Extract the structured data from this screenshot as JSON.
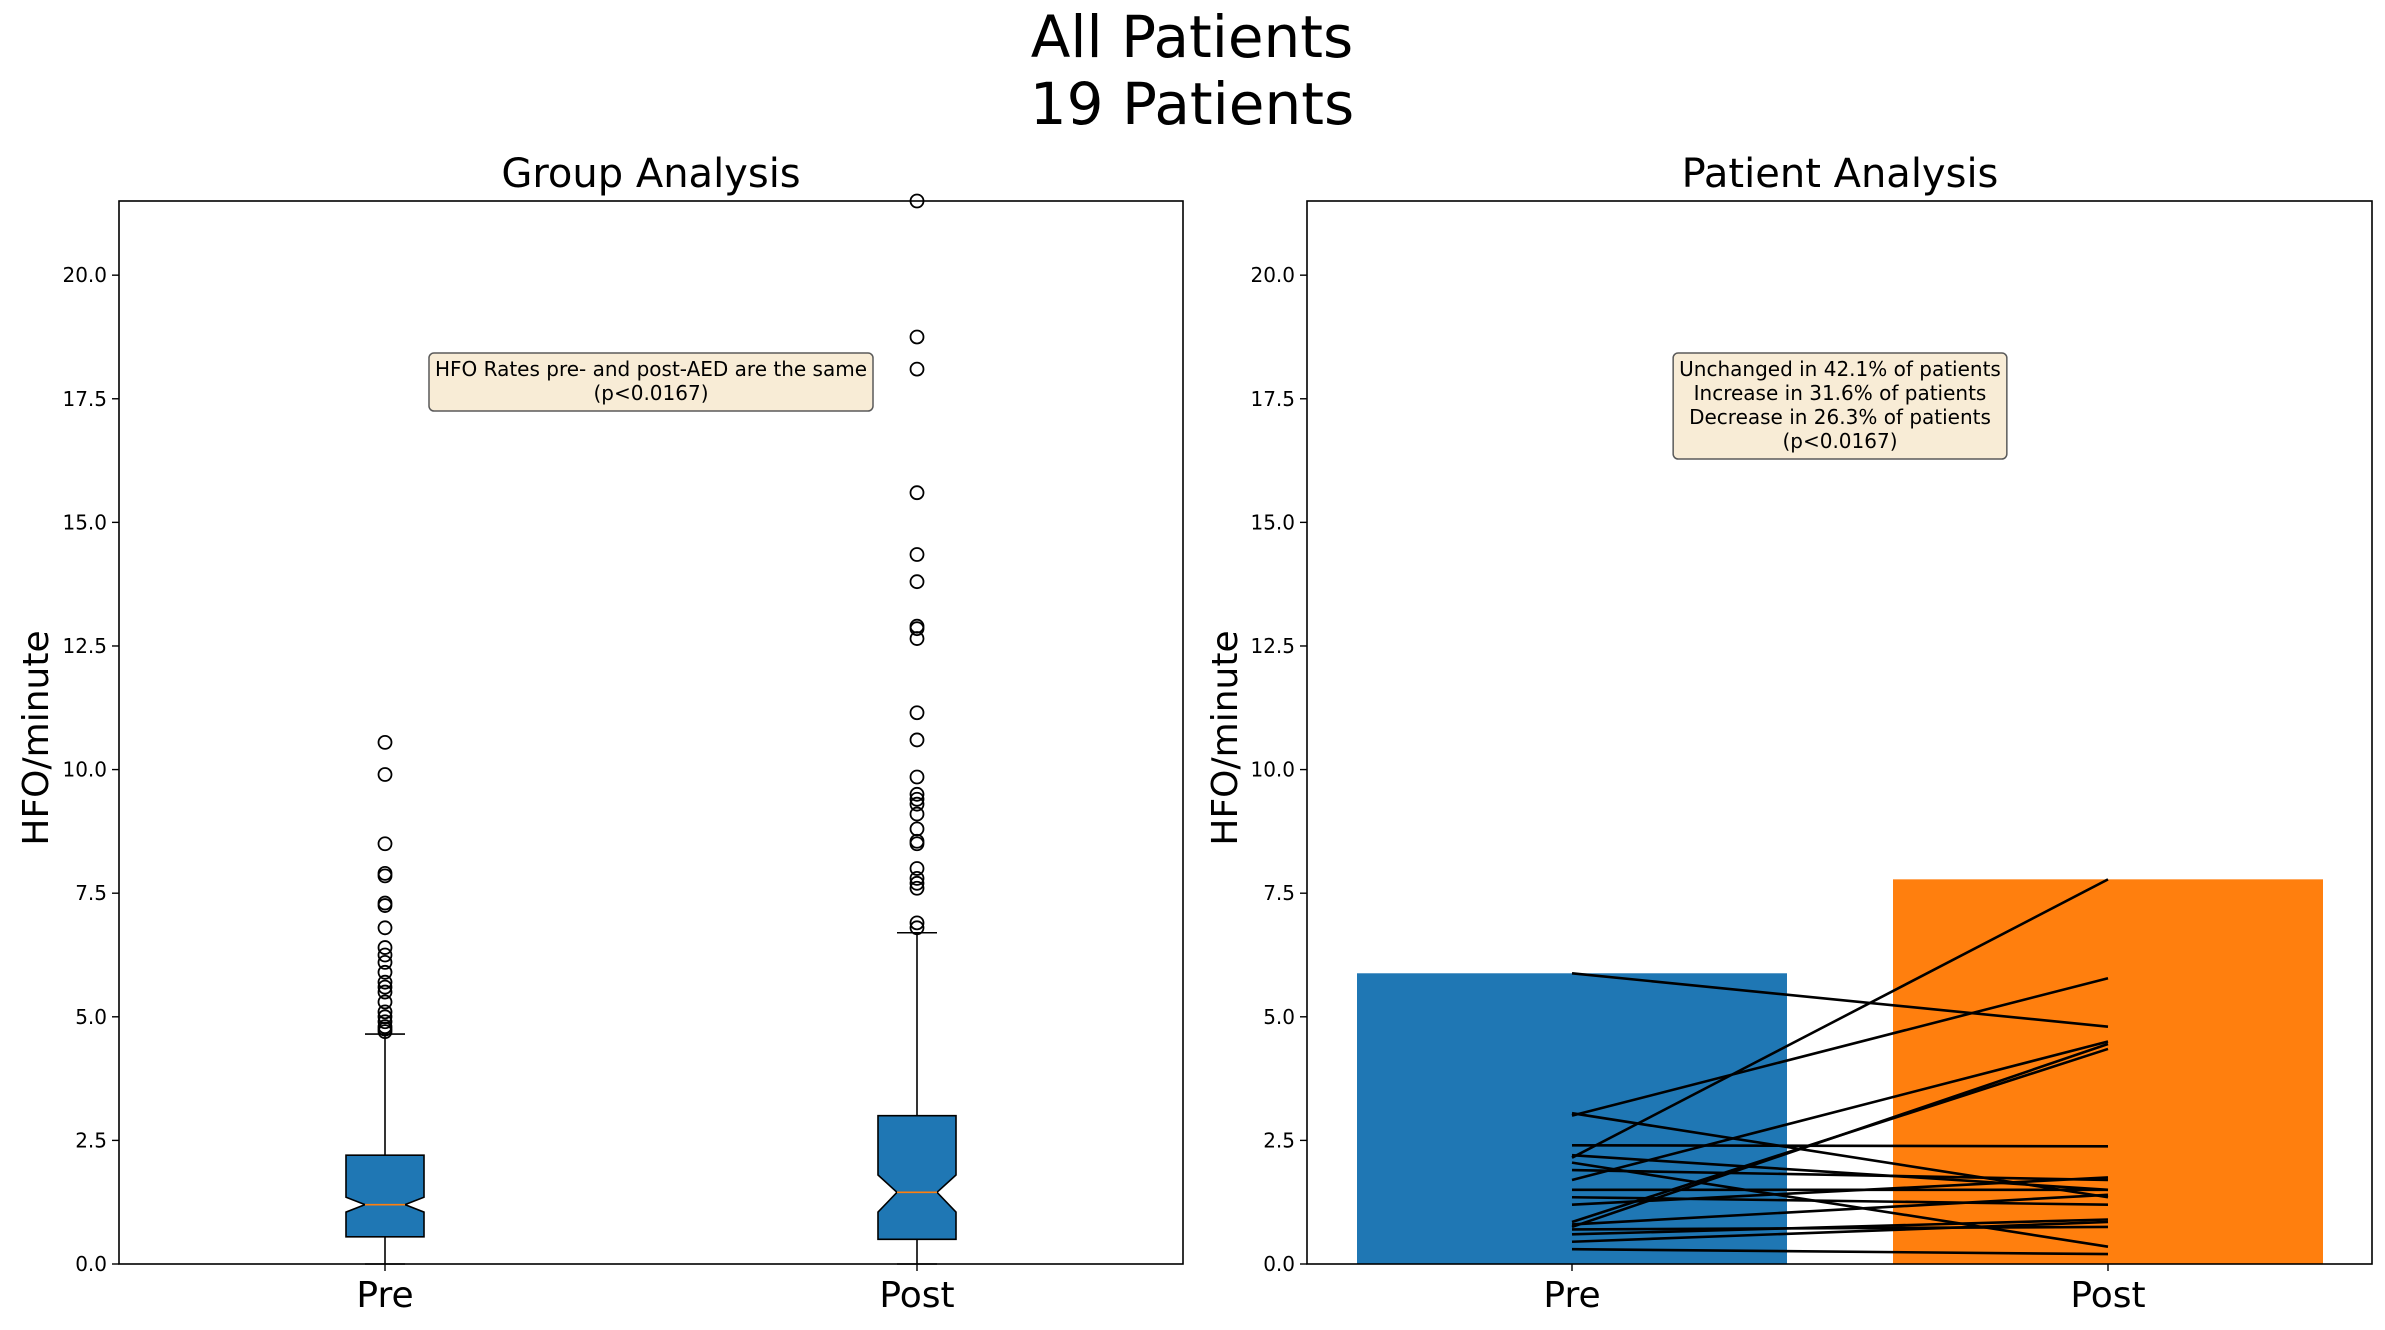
{
  "suptitle": [
    "All Patients",
    "19 Patients"
  ],
  "chart_data": [
    {
      "type": "boxplot",
      "title": "Group Analysis",
      "xlabel": "",
      "ylabel": "HFO/minute",
      "categories": [
        "Pre",
        "Post"
      ],
      "ylim": [
        0,
        21.5
      ],
      "yticks": [
        "0.0",
        "2.5",
        "5.0",
        "7.5",
        "10.0",
        "12.5",
        "15.0",
        "17.5",
        "20.0"
      ],
      "notched": true,
      "color": "#1f77b4",
      "median_color": "#ff7f0e",
      "boxes": [
        {
          "name": "Pre",
          "whisker_low": 0.0,
          "q1": 0.55,
          "median": 1.2,
          "q3": 2.2,
          "whisker_high": 4.65,
          "notch_low": 1.05,
          "notch_high": 1.35,
          "fliers": [
            4.7,
            4.75,
            4.8,
            4.9,
            5.0,
            5.1,
            5.3,
            5.5,
            5.6,
            5.7,
            5.9,
            6.1,
            6.25,
            6.4,
            6.8,
            7.25,
            7.3,
            7.85,
            7.9,
            8.5,
            9.9,
            10.55
          ]
        },
        {
          "name": "Post",
          "whisker_low": 0.0,
          "q1": 0.5,
          "median": 1.45,
          "q3": 3.0,
          "whisker_high": 6.7,
          "notch_low": 1.05,
          "notch_high": 1.8,
          "fliers": [
            6.8,
            6.9,
            7.6,
            7.7,
            7.8,
            8.0,
            8.5,
            8.55,
            8.8,
            9.1,
            9.3,
            9.4,
            9.5,
            9.85,
            10.6,
            11.15,
            12.65,
            12.85,
            12.9,
            13.8,
            14.35,
            15.6,
            18.1,
            18.75,
            21.5
          ]
        }
      ],
      "annotation": [
        "HFO Rates pre- and post-AED are the same",
        "(p<0.0167)"
      ]
    },
    {
      "type": "bar",
      "title": "Patient Analysis",
      "xlabel": "",
      "ylabel": "HFO/minute",
      "categories": [
        "Pre",
        "Post"
      ],
      "values": [
        5.88,
        7.78
      ],
      "colors": [
        "#1f77b4",
        "#ff7f0e"
      ],
      "ylim": [
        0,
        21.5
      ],
      "yticks": [
        "0.0",
        "2.5",
        "5.0",
        "7.5",
        "10.0",
        "12.5",
        "15.0",
        "17.5",
        "20.0"
      ],
      "patient_lines": [
        [
          5.88,
          4.8
        ],
        [
          3.0,
          5.78
        ],
        [
          3.05,
          1.35
        ],
        [
          2.4,
          2.38
        ],
        [
          2.2,
          1.5
        ],
        [
          2.15,
          7.78
        ],
        [
          2.05,
          0.35
        ],
        [
          1.9,
          1.7
        ],
        [
          1.7,
          4.5
        ],
        [
          1.5,
          1.5
        ],
        [
          1.35,
          1.2
        ],
        [
          1.2,
          1.75
        ],
        [
          0.85,
          4.35
        ],
        [
          0.8,
          1.4
        ],
        [
          0.75,
          4.45
        ],
        [
          0.7,
          0.75
        ],
        [
          0.6,
          0.9
        ],
        [
          0.45,
          0.85
        ],
        [
          0.3,
          0.2
        ]
      ],
      "annotation": [
        "Unchanged in 42.1% of patients",
        "Increase in 31.6% of patients",
        "Decrease in 26.3% of patients",
        "(p<0.0167)"
      ]
    }
  ]
}
